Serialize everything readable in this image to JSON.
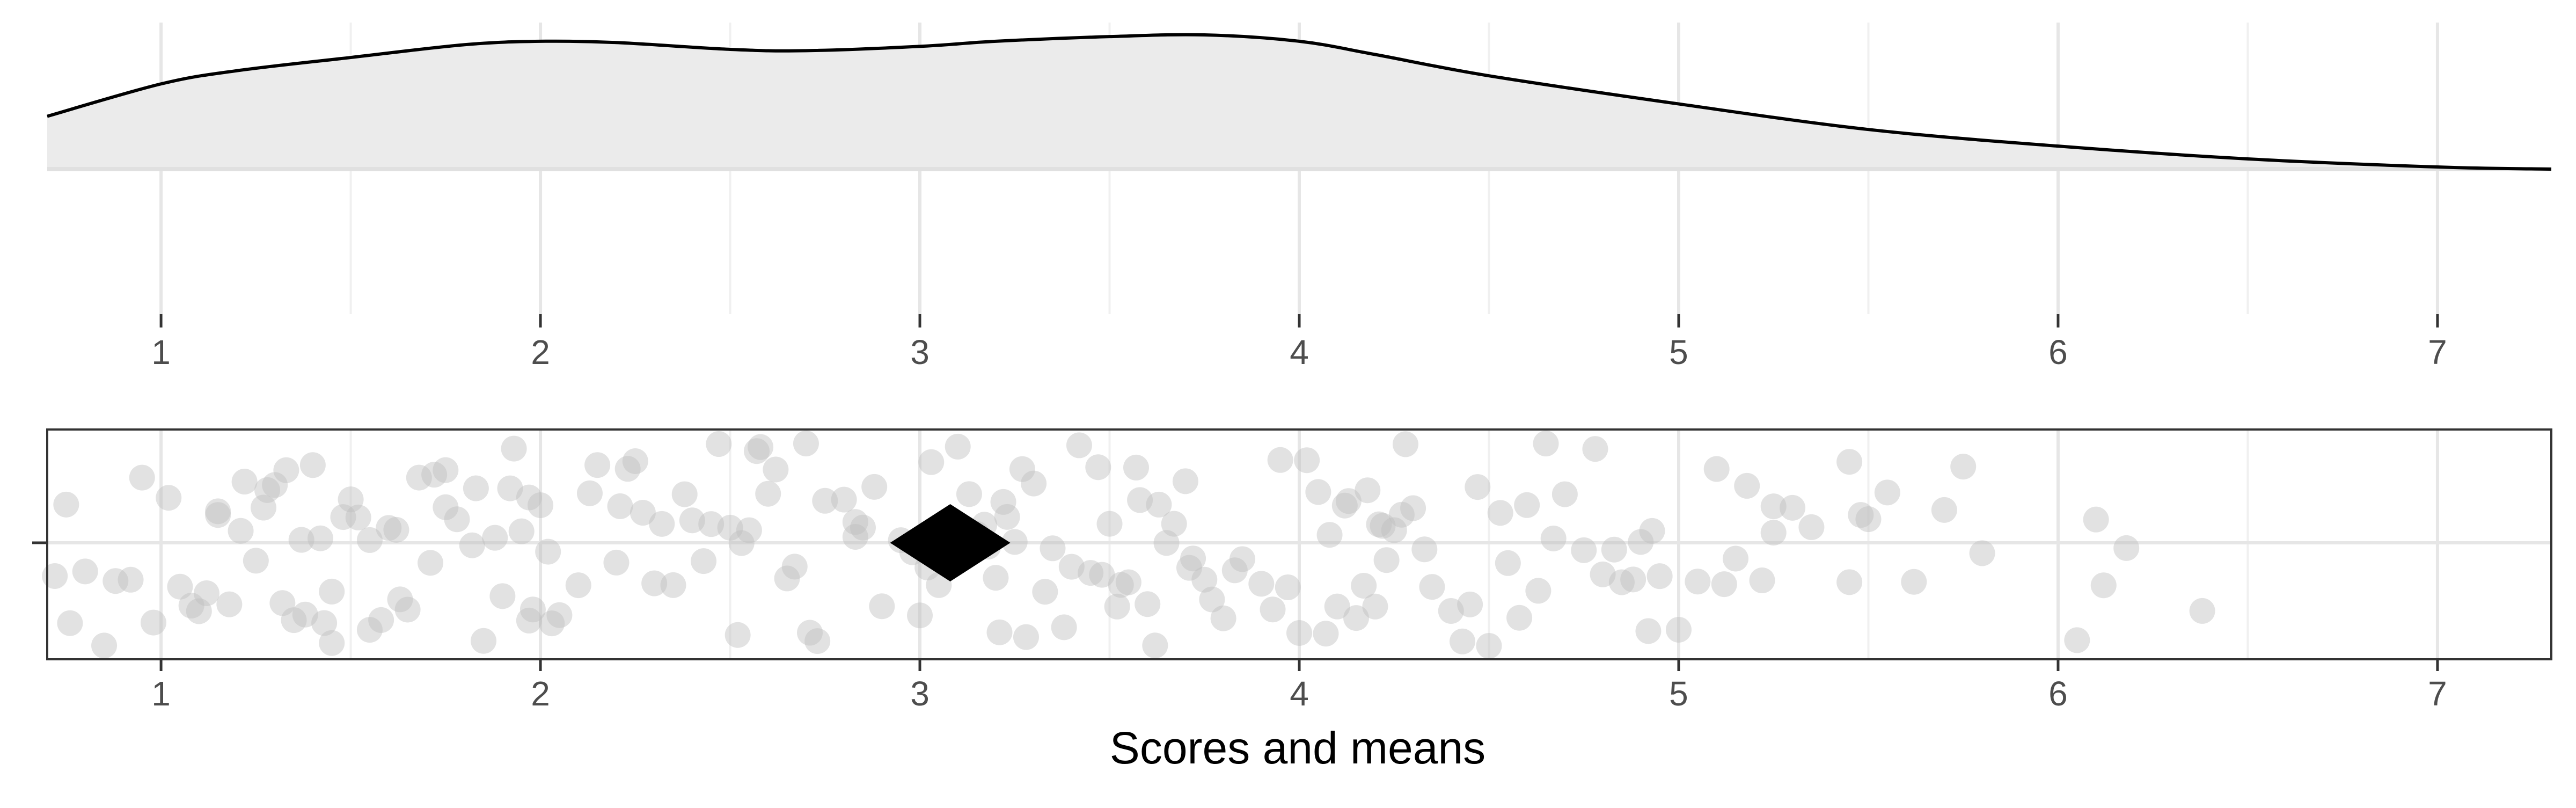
{
  "chart_data": [
    {
      "type": "area",
      "panel": "density",
      "xlim": [
        0.7,
        7.3
      ],
      "x_ticks": [
        "1",
        "2",
        "3",
        "4",
        "5",
        "6",
        "7"
      ],
      "grid": true,
      "density_curve": {
        "x": [
          0.7,
          1.0,
          1.2,
          1.5,
          1.8,
          2.0,
          2.2,
          2.5,
          2.7,
          3.0,
          3.2,
          3.5,
          3.75,
          4.0,
          4.2,
          4.5,
          5.0,
          5.5,
          6.0,
          6.5,
          7.0,
          7.3
        ],
        "y": [
          0.124,
          0.2,
          0.231,
          0.262,
          0.292,
          0.3,
          0.297,
          0.281,
          0.278,
          0.288,
          0.3,
          0.311,
          0.315,
          0.3,
          0.269,
          0.219,
          0.153,
          0.093,
          0.054,
          0.024,
          0.005,
          0.0
        ]
      }
    },
    {
      "type": "scatter",
      "panel": "jitter",
      "xlabel": "Scores and means",
      "xlim": [
        0.7,
        7.3
      ],
      "x_ticks": [
        "1",
        "2",
        "3",
        "4",
        "5",
        "6",
        "7"
      ],
      "grid": true,
      "mean": {
        "x": 3.08,
        "marker": "diamond",
        "color": "#000000"
      },
      "point_color": "#bfbfbf",
      "points_x": [
        0.72,
        0.75,
        0.8,
        0.85,
        0.88,
        0.92,
        0.95,
        0.98,
        1.05,
        1.1,
        1.12,
        1.15,
        1.18,
        1.22,
        1.25,
        1.28,
        1.3,
        1.32,
        1.35,
        1.38,
        1.4,
        1.42,
        1.45,
        1.48,
        1.5,
        1.52,
        1.55,
        1.58,
        1.6,
        1.62,
        1.65,
        1.68,
        1.72,
        1.75,
        1.78,
        1.82,
        1.85,
        1.88,
        1.9,
        1.92,
        1.95,
        1.97,
        1.98,
        2.0,
        2.02,
        2.05,
        2.1,
        2.15,
        2.2,
        2.25,
        2.3,
        2.32,
        2.35,
        2.38,
        2.4,
        2.45,
        2.5,
        2.52,
        2.55,
        2.58,
        2.6,
        2.62,
        2.65,
        2.7,
        2.75,
        2.8,
        2.85,
        2.88,
        2.9,
        2.95,
        2.98,
        3.0,
        3.02,
        3.05,
        3.1,
        3.12,
        3.15,
        3.18,
        3.2,
        3.22,
        3.25,
        3.28,
        3.3,
        3.35,
        3.38,
        3.4,
        3.42,
        3.45,
        3.48,
        3.5,
        3.52,
        3.55,
        3.58,
        3.6,
        3.62,
        3.65,
        3.7,
        3.72,
        3.75,
        3.8,
        3.85,
        3.9,
        3.95,
        4.0,
        4.02,
        4.05,
        4.08,
        4.1,
        4.12,
        4.15,
        4.18,
        4.2,
        4.22,
        4.25,
        4.28,
        4.3,
        4.35,
        4.4,
        4.45,
        4.5,
        4.55,
        4.58,
        4.6,
        4.65,
        4.7,
        4.75,
        4.8,
        4.85,
        4.88,
        4.9,
        4.95,
        5.0,
        5.05,
        5.1,
        5.15,
        5.18,
        5.22,
        5.25,
        5.3,
        5.45,
        5.48,
        5.5,
        5.55,
        5.7,
        5.75,
        5.8,
        6.05,
        6.12,
        6.18,
        6.38,
        1.08,
        1.27,
        1.37,
        1.55,
        1.75,
        2.03,
        2.27,
        2.47,
        2.67,
        2.83,
        3.03,
        3.27,
        3.47,
        3.57,
        3.77,
        3.97,
        4.17,
        4.27,
        4.47,
        4.67,
        4.92,
        5.25,
        5.45,
        0.76,
        1.15,
        1.45,
        1.83,
        2.13,
        2.43,
        2.73,
        3.13,
        3.33,
        3.63,
        3.93,
        4.13,
        4.33,
        4.63,
        4.83,
        5.12,
        5.62,
        1.02,
        1.33,
        1.63,
        1.93,
        2.23,
        2.53,
        2.83,
        3.23,
        3.53,
        3.83,
        4.23,
        4.53,
        4.93,
        1.21,
        1.71,
        2.21,
        2.71,
        3.21,
        3.71,
        4.21,
        1.43,
        1.97,
        2.57,
        3.17,
        3.67,
        4.07,
        4.43,
        4.78,
        5.35,
        6.1
      ]
    }
  ]
}
